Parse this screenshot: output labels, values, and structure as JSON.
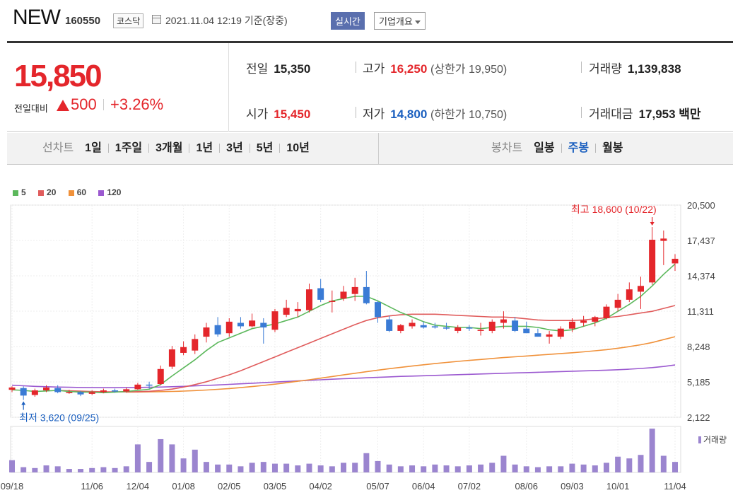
{
  "header": {
    "name": "NEW",
    "code": "160550",
    "market": "코스닥",
    "datetime": "2021.11.04 12:19  기준(장중)",
    "realtime": "실시간",
    "overview": "기업개요"
  },
  "quote": {
    "price": "15,850",
    "change_label": "전일대비",
    "change": "500",
    "change_pct": "+3.26%",
    "prev_label": "전일",
    "prev": "15,350",
    "high_label": "고가",
    "high": "16,250",
    "upper_limit": "(상한가 19,950)",
    "volume_label": "거래량",
    "volume": "1,139,838",
    "open_label": "시가",
    "open": "15,450",
    "low_label": "저가",
    "low": "14,800",
    "lower_limit": "(하한가 10,750)",
    "amount_label": "거래대금",
    "amount": "17,953 백만"
  },
  "tabs": {
    "line_label": "선차트",
    "line_tabs": [
      "1일",
      "1주일",
      "3개월",
      "1년",
      "3년",
      "5년",
      "10년"
    ],
    "candle_label": "봉차트",
    "candle_tabs": [
      "일봉",
      "주봉",
      "월봉"
    ],
    "active_candle": "주봉"
  },
  "colors": {
    "up": "#e4262b",
    "down": "#3a7bd5",
    "ma5": "#5cb85c",
    "ma20": "#e05c5c",
    "ma60": "#f0913a",
    "ma120": "#9b59d0",
    "volume": "#9b85cf"
  },
  "chart_data": {
    "type": "candlestick",
    "legend": [
      {
        "name": "5",
        "color": "#5cb85c"
      },
      {
        "name": "20",
        "color": "#e05c5c"
      },
      {
        "name": "60",
        "color": "#f0913a"
      },
      {
        "name": "120",
        "color": "#9b59d0"
      }
    ],
    "y_ticks": [
      "20,500",
      "17,437",
      "14,374",
      "11,311",
      "8,248",
      "5,185",
      "2,122"
    ],
    "ylim": [
      2122,
      20500
    ],
    "x_ticks": [
      {
        "i": 0,
        "label": "09/18"
      },
      {
        "i": 7,
        "label": "11/06"
      },
      {
        "i": 11,
        "label": "12/04"
      },
      {
        "i": 15,
        "label": "01/08"
      },
      {
        "i": 19,
        "label": "02/05"
      },
      {
        "i": 23,
        "label": "03/05"
      },
      {
        "i": 27,
        "label": "04/02"
      },
      {
        "i": 32,
        "label": "05/07"
      },
      {
        "i": 36,
        "label": "06/04"
      },
      {
        "i": 40,
        "label": "07/02"
      },
      {
        "i": 45,
        "label": "08/06"
      },
      {
        "i": 49,
        "label": "09/03"
      },
      {
        "i": 53,
        "label": "10/01"
      },
      {
        "i": 58,
        "label": "11/04"
      }
    ],
    "candles": [
      [
        4500,
        4800,
        4300,
        4700
      ],
      [
        4650,
        4800,
        3620,
        4000
      ],
      [
        4050,
        4600,
        3900,
        4450
      ],
      [
        4450,
        4900,
        4300,
        4700
      ],
      [
        4650,
        4900,
        4200,
        4300
      ],
      [
        4300,
        4500,
        4150,
        4300
      ],
      [
        4300,
        4400,
        3950,
        4100
      ],
      [
        4150,
        4450,
        4050,
        4300
      ],
      [
        4300,
        4600,
        4200,
        4450
      ],
      [
        4450,
        4600,
        4250,
        4350
      ],
      [
        4350,
        4700,
        4250,
        4550
      ],
      [
        4550,
        5100,
        4500,
        4950
      ],
      [
        4950,
        5200,
        4600,
        4900
      ],
      [
        5000,
        6600,
        4900,
        6300
      ],
      [
        6500,
        8300,
        6300,
        8000
      ],
      [
        7700,
        8700,
        7500,
        8200
      ],
      [
        7900,
        9300,
        7600,
        8900
      ],
      [
        9100,
        10300,
        8600,
        9900
      ],
      [
        10100,
        10800,
        9100,
        9300
      ],
      [
        9400,
        10700,
        9100,
        10400
      ],
      [
        10300,
        10800,
        9800,
        10000
      ],
      [
        10000,
        11100,
        9900,
        10500
      ],
      [
        10300,
        10700,
        8500,
        9900
      ],
      [
        9700,
        11500,
        9500,
        11300
      ],
      [
        11000,
        12300,
        10800,
        11600
      ],
      [
        11300,
        12100,
        10800,
        11500
      ],
      [
        11400,
        13700,
        11200,
        13200
      ],
      [
        13300,
        14100,
        12100,
        12300
      ],
      [
        12200,
        13100,
        11200,
        12200
      ],
      [
        12400,
        13500,
        12200,
        13000
      ],
      [
        12800,
        14200,
        12200,
        13400
      ],
      [
        13400,
        14800,
        11900,
        12000
      ],
      [
        12100,
        12200,
        10300,
        10800
      ],
      [
        10600,
        10900,
        9500,
        9600
      ],
      [
        9600,
        10200,
        9400,
        10100
      ],
      [
        10000,
        10600,
        9800,
        10300
      ],
      [
        10100,
        10400,
        9800,
        9900
      ],
      [
        10000,
        10300,
        9800,
        9900
      ],
      [
        9900,
        10300,
        9700,
        9800
      ],
      [
        9600,
        10100,
        9400,
        9900
      ],
      [
        9900,
        10100,
        9600,
        9800
      ],
      [
        9600,
        10300,
        9200,
        9700
      ],
      [
        9600,
        10600,
        9400,
        10400
      ],
      [
        10300,
        11300,
        9800,
        10600
      ],
      [
        10500,
        10800,
        9500,
        9600
      ],
      [
        9800,
        10400,
        9500,
        9400
      ],
      [
        9400,
        9800,
        9100,
        9100
      ],
      [
        9100,
        9600,
        8500,
        9300
      ],
      [
        9100,
        10000,
        8900,
        9800
      ],
      [
        9800,
        10700,
        9500,
        10400
      ],
      [
        10300,
        10900,
        10000,
        10500
      ],
      [
        10400,
        10900,
        10000,
        10800
      ],
      [
        10700,
        11900,
        10600,
        11700
      ],
      [
        11600,
        12800,
        11300,
        12300
      ],
      [
        12300,
        13800,
        12100,
        13200
      ],
      [
        13000,
        14300,
        11500,
        13500
      ],
      [
        13800,
        18600,
        13600,
        17500
      ],
      [
        17400,
        18300,
        15300,
        17600
      ],
      [
        15450,
        16250,
        14800,
        15850
      ]
    ],
    "ma5": [
      4500,
      4450,
      4350,
      4400,
      4450,
      4350,
      4300,
      4300,
      4250,
      4300,
      4350,
      4450,
      4550,
      4950,
      5700,
      6400,
      7100,
      7900,
      8600,
      9000,
      9400,
      9800,
      10000,
      10200,
      10500,
      10800,
      11300,
      11800,
      12200,
      12400,
      12600,
      12600,
      12200,
      11700,
      11200,
      10800,
      10400,
      10100,
      10000,
      9900,
      9900,
      9800,
      9900,
      10000,
      10000,
      10000,
      9900,
      9700,
      9600,
      9700,
      10000,
      10300,
      10700,
      11300,
      11900,
      12600,
      13500,
      14500,
      15400
    ],
    "ma20": [
      null,
      null,
      null,
      null,
      4450,
      4420,
      4380,
      4350,
      4330,
      4320,
      4320,
      4340,
      4370,
      4450,
      4560,
      4730,
      4950,
      5200,
      5500,
      5800,
      6150,
      6550,
      6950,
      7350,
      7750,
      8150,
      8550,
      8950,
      9350,
      9750,
      10150,
      10500,
      10750,
      10900,
      11000,
      11050,
      11050,
      11050,
      11000,
      10950,
      10900,
      10850,
      10800,
      10800,
      10750,
      10650,
      10550,
      10500,
      10500,
      10500,
      10550,
      10650,
      10750,
      10850,
      11000,
      11150,
      11300,
      11550,
      11800
    ],
    "ma60": [
      null,
      null,
      null,
      null,
      null,
      null,
      null,
      null,
      null,
      null,
      4300,
      4310,
      4320,
      4340,
      4360,
      4390,
      4430,
      4480,
      4540,
      4610,
      4690,
      4780,
      4880,
      4990,
      5110,
      5240,
      5370,
      5510,
      5650,
      5790,
      5930,
      6070,
      6200,
      6330,
      6450,
      6560,
      6670,
      6770,
      6870,
      6960,
      7050,
      7130,
      7210,
      7290,
      7360,
      7430,
      7500,
      7570,
      7640,
      7710,
      7790,
      7880,
      7980,
      8100,
      8240,
      8400,
      8600,
      8850,
      9100
    ],
    "ma120": [
      4900,
      4850,
      4800,
      4770,
      4740,
      4720,
      4700,
      4690,
      4680,
      4680,
      4690,
      4700,
      4720,
      4740,
      4770,
      4800,
      4840,
      4880,
      4920,
      4970,
      5020,
      5070,
      5120,
      5170,
      5220,
      5270,
      5320,
      5370,
      5420,
      5460,
      5500,
      5540,
      5580,
      5620,
      5660,
      5690,
      5720,
      5750,
      5780,
      5810,
      5840,
      5870,
      5900,
      5930,
      5960,
      5990,
      6020,
      6050,
      6080,
      6110,
      6140,
      6170,
      6200,
      6240,
      6290,
      6350,
      6420,
      6520,
      6650
    ],
    "volume": [
      70,
      30,
      25,
      40,
      35,
      20,
      20,
      25,
      30,
      25,
      35,
      160,
      60,
      190,
      160,
      80,
      130,
      60,
      45,
      45,
      35,
      55,
      60,
      50,
      50,
      40,
      50,
      40,
      35,
      55,
      55,
      110,
      65,
      45,
      35,
      40,
      35,
      45,
      40,
      35,
      40,
      45,
      55,
      95,
      45,
      35,
      30,
      35,
      35,
      50,
      45,
      40,
      55,
      90,
      80,
      100,
      250,
      95,
      60
    ],
    "high_label": "최고 18,600 (10/22)",
    "low_label": "최저 3,620 (09/25)",
    "volume_label": "거래량"
  }
}
